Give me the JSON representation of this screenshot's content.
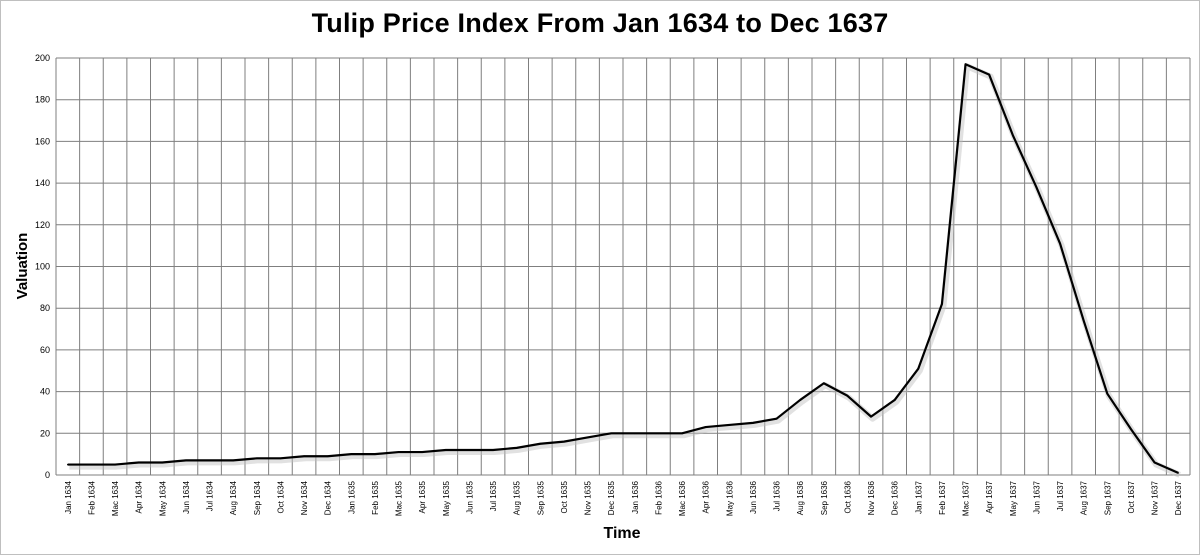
{
  "chart_data": {
    "type": "line",
    "title": "Tulip Price Index From Jan 1634 to Dec 1637",
    "xlabel": "Time",
    "ylabel": "Valuation",
    "ylim": [
      0,
      200
    ],
    "yticks": [
      "0",
      "20",
      "40",
      "60",
      "80",
      "100",
      "120",
      "140",
      "160",
      "180",
      "200"
    ],
    "grid": true,
    "line_color": "#000000",
    "categories": [
      "Jan 1634",
      "Feb 1634",
      "Mac 1634",
      "Apr 1634",
      "May 1634",
      "Jun 1634",
      "Jul 1634",
      "Aug 1634",
      "Sep 1634",
      "Oct 1634",
      "Nov 1634",
      "Dec 1634",
      "Jan 1635",
      "Feb 1635",
      "Mac 1635",
      "Apr 1635",
      "May 1635",
      "Jun 1635",
      "Jul 1635",
      "Aug 1635",
      "Sep 1635",
      "Oct 1635",
      "Nov 1635",
      "Dec 1635",
      "Jan 1636",
      "Feb 1636",
      "Mac 1636",
      "Apr 1636",
      "May 1636",
      "Jun 1636",
      "Jul 1636",
      "Aug 1636",
      "Sep 1636",
      "Oct 1636",
      "Nov 1636",
      "Dec 1636",
      "Jan 1637",
      "Feb 1637",
      "Mac 1637",
      "Apr 1637",
      "May 1637",
      "Jun 1637",
      "Jul 1637",
      "Aug 1637",
      "Sep 1637",
      "Oct 1637",
      "Nov 1637",
      "Dec 1637"
    ],
    "values": [
      5,
      5,
      5,
      6,
      6,
      7,
      7,
      7,
      8,
      8,
      9,
      9,
      10,
      10,
      11,
      11,
      12,
      12,
      12,
      13,
      15,
      16,
      18,
      20,
      20,
      20,
      20,
      23,
      24,
      25,
      27,
      36,
      44,
      38,
      28,
      36,
      51,
      82,
      197,
      192,
      163,
      138,
      111,
      74,
      39,
      22,
      6,
      1
    ]
  }
}
